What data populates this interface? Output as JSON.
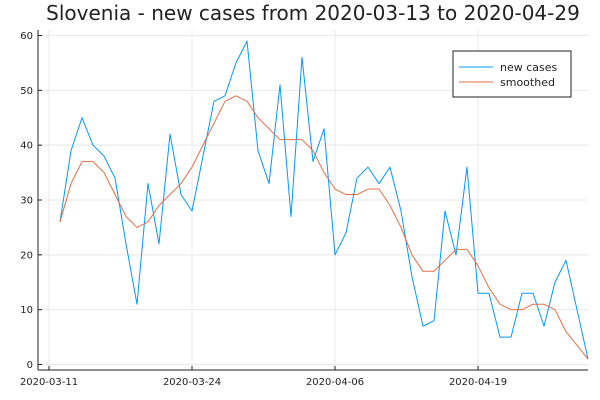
{
  "chart_data": {
    "type": "line",
    "title": "Slovenia - new cases from 2020-03-13 to 2020-04-29",
    "xlabel": "",
    "ylabel": "",
    "x_start": "2020-03-12",
    "x_ticks": [
      "2020-03-11",
      "2020-03-24",
      "2020-04-06",
      "2020-04-19"
    ],
    "y_ticks": [
      0,
      10,
      20,
      30,
      40,
      50,
      60
    ],
    "xlim": [
      "2020-03-10",
      "2020-04-29"
    ],
    "ylim": [
      -1,
      61
    ],
    "grid": true,
    "legend_position": "top-right",
    "series": [
      {
        "name": "new cases",
        "color": "#009AFA",
        "values": [
          26,
          39,
          45,
          40,
          38,
          34,
          22,
          11,
          33,
          22,
          42,
          31,
          28,
          38,
          48,
          49,
          55,
          59,
          39,
          33,
          51,
          27,
          56,
          37,
          43,
          20,
          24,
          34,
          36,
          33,
          36,
          28,
          16,
          7,
          8,
          28,
          20,
          36,
          13,
          13,
          5,
          5,
          13,
          13,
          7,
          15,
          19,
          10,
          1
        ]
      },
      {
        "name": "smoothed",
        "color": "#E36F47",
        "values": [
          26,
          33,
          37,
          37,
          35,
          31,
          27,
          25,
          26,
          29,
          31,
          33,
          36,
          40,
          44,
          48,
          49,
          48,
          45,
          43,
          41,
          41,
          41,
          39,
          35,
          32,
          31,
          31,
          32,
          32,
          29,
          25,
          20,
          17,
          17,
          19,
          21,
          21,
          18,
          14,
          11,
          10,
          10,
          11,
          11,
          10,
          6,
          3.5,
          1
        ]
      }
    ]
  }
}
